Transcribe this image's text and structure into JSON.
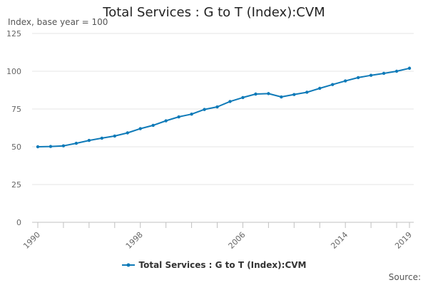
{
  "chart_data": {
    "type": "line",
    "title": "Total Services : G to T (Index):CVM",
    "subtitle": "Index, base year = 100",
    "xlabel": "",
    "ylabel": "Index, base year = 100",
    "ylim": [
      0,
      125
    ],
    "y_ticks": [
      "0",
      "25",
      "50",
      "75",
      "100",
      "125"
    ],
    "y_tick_values": [
      0,
      25,
      50,
      75,
      100,
      125
    ],
    "xlim": [
      1990,
      2019
    ],
    "x_ticks": [
      "1990",
      "1998",
      "2006",
      "2014",
      "2019"
    ],
    "x_tick_values": [
      1990,
      1998,
      2006,
      2014,
      2019
    ],
    "x_minor_ticks": [
      1990,
      1992,
      1994,
      1996,
      1998,
      2000,
      2002,
      2004,
      2006,
      2008,
      2010,
      2012,
      2014,
      2016,
      2018,
      2019
    ],
    "grid": true,
    "legend_position": "bottom-center",
    "source_label": "Source:",
    "series": [
      {
        "name": "Total Services : G to T (Index):CVM",
        "color": "#0F7AB8",
        "x": [
          1990,
          1991,
          1992,
          1993,
          1994,
          1995,
          1996,
          1997,
          1998,
          1999,
          2000,
          2001,
          2002,
          2003,
          2004,
          2005,
          2006,
          2007,
          2008,
          2009,
          2010,
          2011,
          2012,
          2013,
          2014,
          2015,
          2016,
          2017,
          2018,
          2019
        ],
        "values": [
          50.0,
          50.2,
          50.6,
          52.3,
          54.2,
          55.7,
          57.1,
          59.2,
          62.0,
          64.2,
          67.2,
          69.8,
          71.6,
          74.7,
          76.4,
          80.0,
          82.6,
          84.9,
          85.2,
          83.0,
          84.6,
          86.1,
          88.7,
          91.2,
          93.6,
          95.8,
          97.3,
          98.6,
          100.0,
          102.0
        ]
      }
    ]
  }
}
